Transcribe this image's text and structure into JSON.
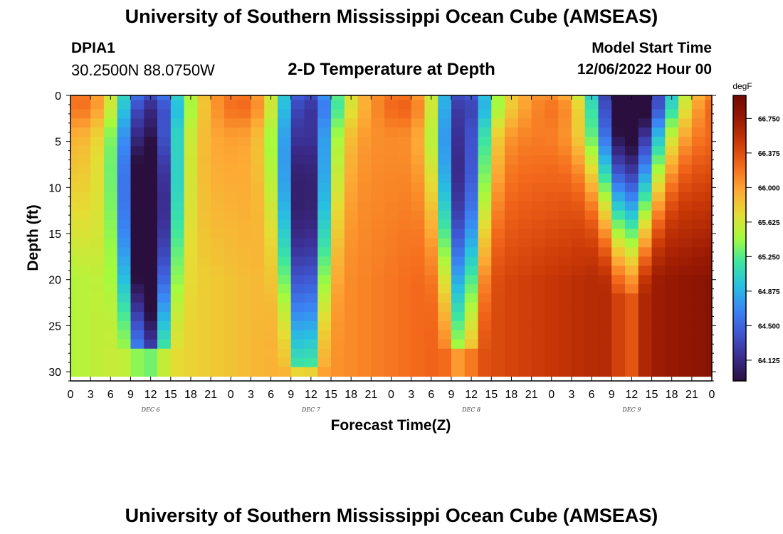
{
  "header": {
    "title": "University of Southern Mississippi Ocean Cube (AMSEAS)",
    "station": "DPIA1",
    "coordinates": "30.2500N  88.0750W",
    "chart_title": "2-D Temperature at Depth",
    "model_start_label": "Model Start Time",
    "model_start_value": "12/06/2022 Hour 00"
  },
  "footer": {
    "title": "University of Southern Mississippi Ocean Cube (AMSEAS)"
  },
  "chart_data": {
    "type": "heatmap",
    "title": "2-D Temperature at Depth",
    "xlabel": "Forecast Time(Z)",
    "ylabel": "Depth (ft)",
    "x_ticks": [
      "0",
      "3",
      "6",
      "9",
      "12",
      "15",
      "18",
      "21",
      "0",
      "3",
      "6",
      "9",
      "12",
      "15",
      "18",
      "21",
      "0",
      "3",
      "6",
      "9",
      "12",
      "15",
      "18",
      "21",
      "0",
      "3",
      "6",
      "9",
      "12",
      "15",
      "18",
      "21",
      "0"
    ],
    "day_labels": [
      "DEC 6",
      "DEC 7",
      "DEC 8",
      "DEC 9"
    ],
    "xlim_hours": [
      0,
      96
    ],
    "y_ticks": [
      0,
      5,
      10,
      15,
      20,
      25,
      30
    ],
    "ylim_ft": [
      0,
      31
    ],
    "colorbar": {
      "unit": "degF",
      "ticks": [
        "66.750",
        "66.375",
        "66.000",
        "65.625",
        "65.250",
        "64.875",
        "64.500",
        "64.125"
      ],
      "range": [
        63.9,
        67.0
      ],
      "colors": [
        "#2a0f3e",
        "#3b2d8f",
        "#3f57d2",
        "#3a86f5",
        "#28c0e0",
        "#3ee6a0",
        "#a4fb3d",
        "#e6dc34",
        "#fda935",
        "#f46a1c",
        "#cc3a07",
        "#9a1a03",
        "#6e0a02"
      ]
    },
    "depth_rows_ft": [
      0,
      1,
      2,
      3,
      4,
      5,
      6,
      7,
      8,
      9,
      10,
      11,
      12,
      13,
      14,
      15,
      16,
      17,
      18,
      19,
      20,
      21,
      22,
      23,
      24,
      25,
      26,
      27,
      28,
      29,
      30
    ],
    "time_hours": [
      0,
      2,
      4,
      6,
      8,
      10,
      12,
      14,
      16,
      18,
      20,
      22,
      24,
      26,
      28,
      30,
      32,
      34,
      36,
      38,
      40,
      42,
      44,
      46,
      48,
      50,
      52,
      54,
      56,
      58,
      60,
      62,
      64,
      66,
      68,
      70,
      72,
      74,
      76,
      78,
      80,
      82,
      84,
      86,
      88,
      90,
      92,
      94,
      96
    ],
    "cool_cores": [
      {
        "hour": 11.5,
        "depth": 13,
        "min_degF": 64.05,
        "top_halfwidth_h": 5.5,
        "bottom_halfwidth_h": 2.5,
        "reaches_ft": 27
      },
      {
        "hour": 35.0,
        "depth": 11,
        "min_degF": 64.35,
        "top_halfwidth_h": 5.0,
        "bottom_halfwidth_h": 2.0,
        "reaches_ft": 29
      },
      {
        "hour": 58.5,
        "depth": 9,
        "min_degF": 64.4,
        "top_halfwidth_h": 4.5,
        "bottom_halfwidth_h": 2.0,
        "reaches_ft": 27
      },
      {
        "hour": 83.5,
        "depth": 2,
        "min_degF": 64.0,
        "top_halfwidth_h": 6.5,
        "bottom_halfwidth_h": 2.0,
        "reaches_ft": 21
      }
    ],
    "background_degF": {
      "surface": 66.05,
      "bottom_early": 65.5,
      "bottom_late": 66.85
    }
  }
}
